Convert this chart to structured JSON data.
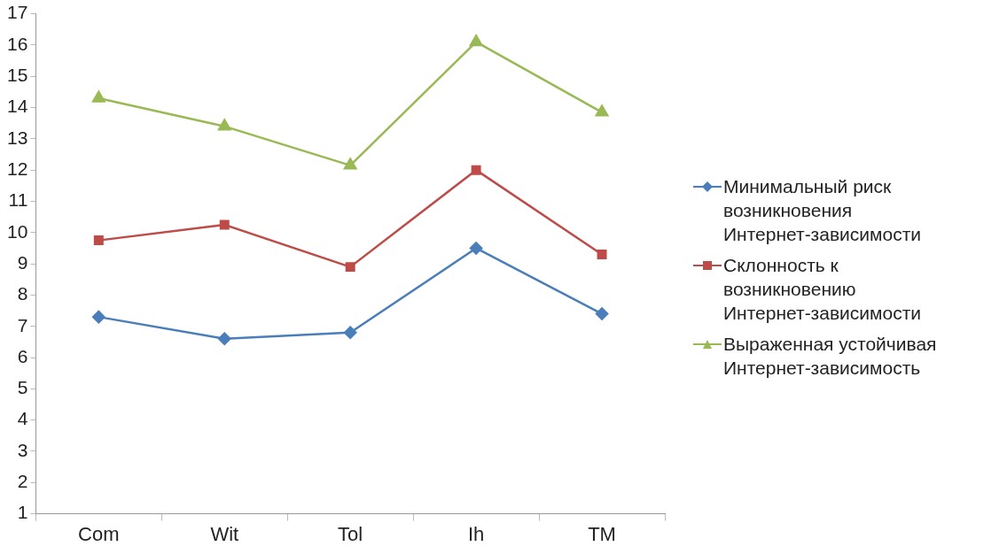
{
  "chart_data": {
    "type": "line",
    "categories": [
      "Com",
      "Wit",
      "Tol",
      "Ih",
      "TM"
    ],
    "series": [
      {
        "name": "Минимальный риск возникновения Интернет-зависимости",
        "color": "#4a7ebb",
        "marker": "diamond",
        "values": [
          7.3,
          6.6,
          6.8,
          9.5,
          7.4
        ]
      },
      {
        "name": "Склонность к возникновению Интернет-зависимости",
        "color": "#be4b48",
        "marker": "square",
        "values": [
          9.75,
          10.25,
          8.9,
          12.0,
          9.3
        ]
      },
      {
        "name": "Выраженная устойчивая Интернет-зависимость",
        "color": "#98b954",
        "marker": "triangle",
        "values": [
          14.3,
          13.4,
          12.15,
          16.1,
          13.85
        ]
      }
    ],
    "ylim": [
      1,
      17
    ],
    "yticks": [
      1,
      2,
      3,
      4,
      5,
      6,
      7,
      8,
      9,
      10,
      11,
      12,
      13,
      14,
      15,
      16,
      17
    ],
    "grid": false,
    "legend": "right"
  }
}
